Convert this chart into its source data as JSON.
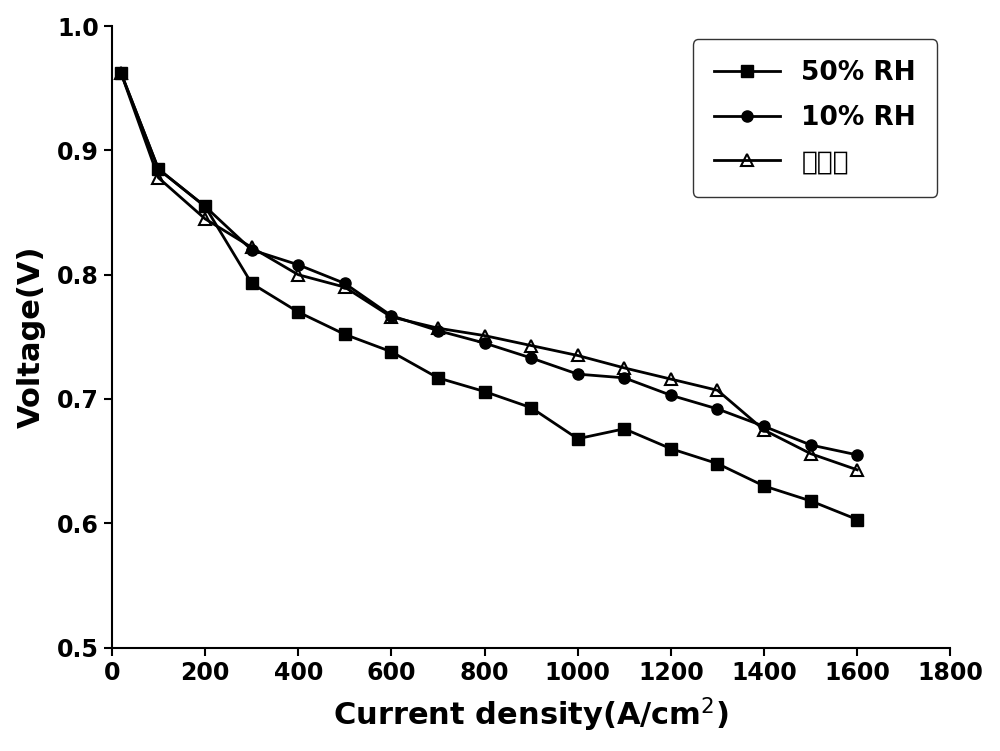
{
  "series_50rh": {
    "label": "50% RH",
    "x": [
      20,
      100,
      200,
      300,
      400,
      500,
      600,
      700,
      800,
      900,
      1000,
      1100,
      1200,
      1300,
      1400,
      1500,
      1600
    ],
    "y": [
      0.962,
      0.885,
      0.855,
      0.793,
      0.77,
      0.752,
      0.738,
      0.717,
      0.706,
      0.693,
      0.668,
      0.676,
      0.66,
      0.648,
      0.63,
      0.618,
      0.603
    ],
    "marker": "s",
    "color": "#000000",
    "linewidth": 2.0,
    "markersize": 8,
    "fillstyle": "full"
  },
  "series_10rh": {
    "label": "10% RH",
    "x": [
      20,
      100,
      200,
      300,
      400,
      500,
      600,
      700,
      800,
      900,
      1000,
      1100,
      1200,
      1300,
      1400,
      1500,
      1600
    ],
    "y": [
      0.962,
      0.885,
      0.855,
      0.82,
      0.808,
      0.793,
      0.767,
      0.755,
      0.745,
      0.733,
      0.72,
      0.717,
      0.703,
      0.692,
      0.678,
      0.663,
      0.655
    ],
    "marker": "o",
    "color": "#000000",
    "linewidth": 2.0,
    "markersize": 8,
    "fillstyle": "full"
  },
  "series_nohum": {
    "label": "不增湿",
    "x": [
      20,
      100,
      200,
      300,
      400,
      500,
      600,
      700,
      800,
      900,
      1000,
      1100,
      1200,
      1300,
      1400,
      1500,
      1600
    ],
    "y": [
      0.962,
      0.878,
      0.845,
      0.822,
      0.8,
      0.79,
      0.766,
      0.757,
      0.751,
      0.743,
      0.735,
      0.725,
      0.716,
      0.707,
      0.675,
      0.656,
      0.643
    ],
    "marker": "^",
    "color": "#000000",
    "linewidth": 2.0,
    "markersize": 9,
    "fillstyle": "none"
  },
  "xlabel": "Current density(A/cm$^2$)",
  "ylabel": "Voltage(V)",
  "xlim": [
    0,
    1800
  ],
  "ylim": [
    0.5,
    1.0
  ],
  "xticks": [
    0,
    200,
    400,
    600,
    800,
    1000,
    1200,
    1400,
    1600,
    1800
  ],
  "yticks": [
    0.5,
    0.6,
    0.7,
    0.8,
    0.9,
    1.0
  ],
  "legend_loc": "upper right",
  "background_color": "#ffffff",
  "grid": false,
  "tick_fontsize": 17,
  "label_fontsize": 22,
  "legend_fontsize": 19
}
